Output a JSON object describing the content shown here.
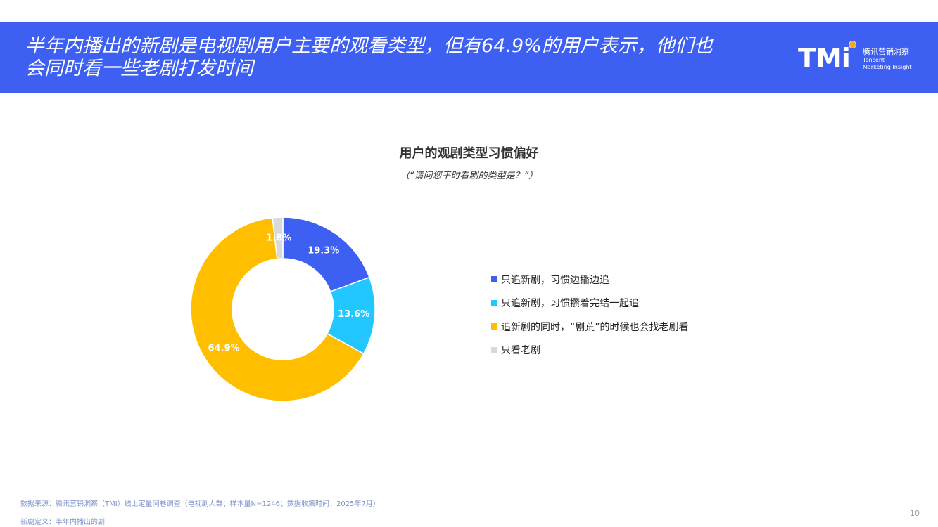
{
  "header": {
    "title_line1": "半年内播出的新剧是电视剧用户主要的观看类型，但有64.9%的用户表示，他们也",
    "title_line2": "会同时看一些老剧打发时间",
    "bg_color": "#3d5ff2"
  },
  "logo": {
    "mark": "TMi",
    "name_cn": "腾讯营销洞察",
    "name_en_1": "Tencent",
    "name_en_2": "Marketing Insight"
  },
  "chart_data": {
    "type": "pie",
    "title": "用户的观剧类型习惯偏好",
    "subtitle": "（“请问您平时看剧的类型是？”）",
    "legend_position": "right",
    "slices": [
      {
        "name": "只追新剧，习惯边播边追",
        "value": 19.3,
        "label": "19.3%",
        "color": "#3d5ff2"
      },
      {
        "name": "只追新剧，习惯攒着完结一起追",
        "value": 13.6,
        "label": "13.6%",
        "color": "#22c7ff"
      },
      {
        "name": "追新剧的同时，“剧荒”的时候也会找老剧看",
        "value": 64.9,
        "label": "64.9%",
        "color": "#ffbf00"
      },
      {
        "name": "只看老剧",
        "value": 1.8,
        "label": "1.8%",
        "color": "#d9d9d9"
      }
    ]
  },
  "footer": {
    "source": "数据来源：腾讯营销洞察（TMI）线上定量问卷调查（电视剧人群；样本量N=1246；数据收集时间：2025年7月）",
    "definition": "新剧定义：半年内播出的剧",
    "page_number": "10"
  }
}
